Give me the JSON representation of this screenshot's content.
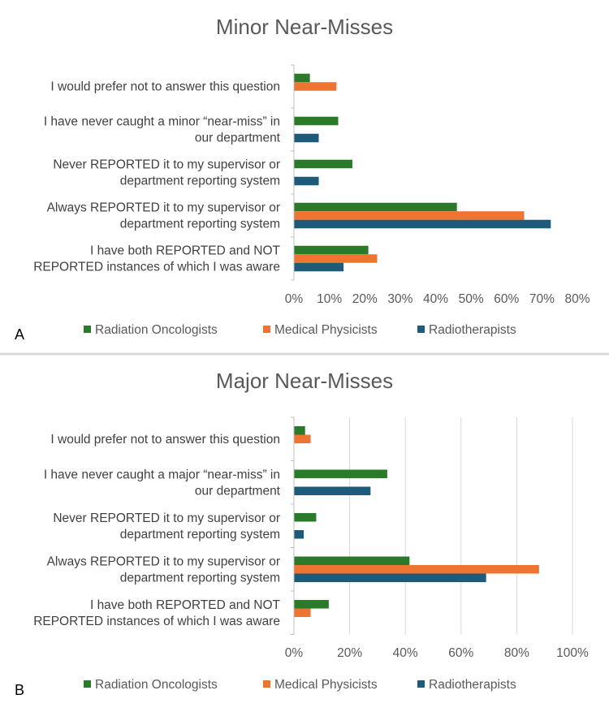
{
  "series_style": [
    {
      "name": "Radiation Oncologists",
      "color": "#2a7a2a"
    },
    {
      "name": "Medical Physicists",
      "color": "#ee7432"
    },
    {
      "name": "Radiotherapists",
      "color": "#1e5a7a"
    }
  ],
  "chart_data": [
    {
      "type": "bar",
      "orientation": "horizontal",
      "panel_label": "A",
      "title": "Minor Near-Misses",
      "categories": [
        [
          "I would prefer not to answer this question"
        ],
        [
          "I have never caught a minor “near-miss” in",
          "our department"
        ],
        [
          "Never REPORTED it to my supervisor or",
          "department reporting system"
        ],
        [
          "Always REPORTED it to my supervisor or",
          "department reporting system"
        ],
        [
          "I have both REPORTED and NOT",
          "REPORTED instances of which I was aware"
        ]
      ],
      "series": [
        {
          "name": "Radiation Oncologists",
          "values": [
            4.5,
            12.5,
            16.5,
            46,
            21
          ]
        },
        {
          "name": "Medical Physicists",
          "values": [
            12,
            0,
            0,
            65,
            23.5
          ]
        },
        {
          "name": "Radiotherapists",
          "values": [
            0,
            7,
            7,
            72.5,
            14
          ]
        }
      ],
      "xlim": [
        0,
        80
      ],
      "xticks": [
        0,
        10,
        20,
        30,
        40,
        50,
        60,
        70,
        80
      ],
      "tick_labels": [
        "0%",
        "10%",
        "20%",
        "30%",
        "40%",
        "50%",
        "60%",
        "70%",
        "80%"
      ],
      "grid": false,
      "legend": [
        "Radiation Oncologists",
        "Medical Physicists",
        "Radiotherapists"
      ]
    },
    {
      "type": "bar",
      "orientation": "horizontal",
      "panel_label": "B",
      "title": "Major Near-Misses",
      "categories": [
        [
          "I would prefer not to answer this question"
        ],
        [
          "I have never caught a major “near-miss” in",
          "our department"
        ],
        [
          "Never REPORTED it to my supervisor or",
          "department reporting system"
        ],
        [
          "Always REPORTED it to my supervisor or",
          "department reporting system"
        ],
        [
          "I have both REPORTED and NOT",
          "REPORTED instances of which I was aware"
        ]
      ],
      "series": [
        {
          "name": "Radiation Oncologists",
          "values": [
            4,
            33.5,
            8,
            41.5,
            12.5
          ]
        },
        {
          "name": "Medical Physicists",
          "values": [
            6,
            0,
            0,
            88,
            6
          ]
        },
        {
          "name": "Radiotherapists",
          "values": [
            0,
            27.5,
            3.5,
            69,
            0
          ]
        }
      ],
      "xlim": [
        0,
        100
      ],
      "xticks": [
        0,
        20,
        40,
        60,
        80,
        100
      ],
      "tick_labels": [
        "0%",
        "20%",
        "40%",
        "60%",
        "80%",
        "100%"
      ],
      "grid": true,
      "legend": [
        "Radiation Oncologists",
        "Medical Physicists",
        "Radiotherapists"
      ]
    }
  ]
}
